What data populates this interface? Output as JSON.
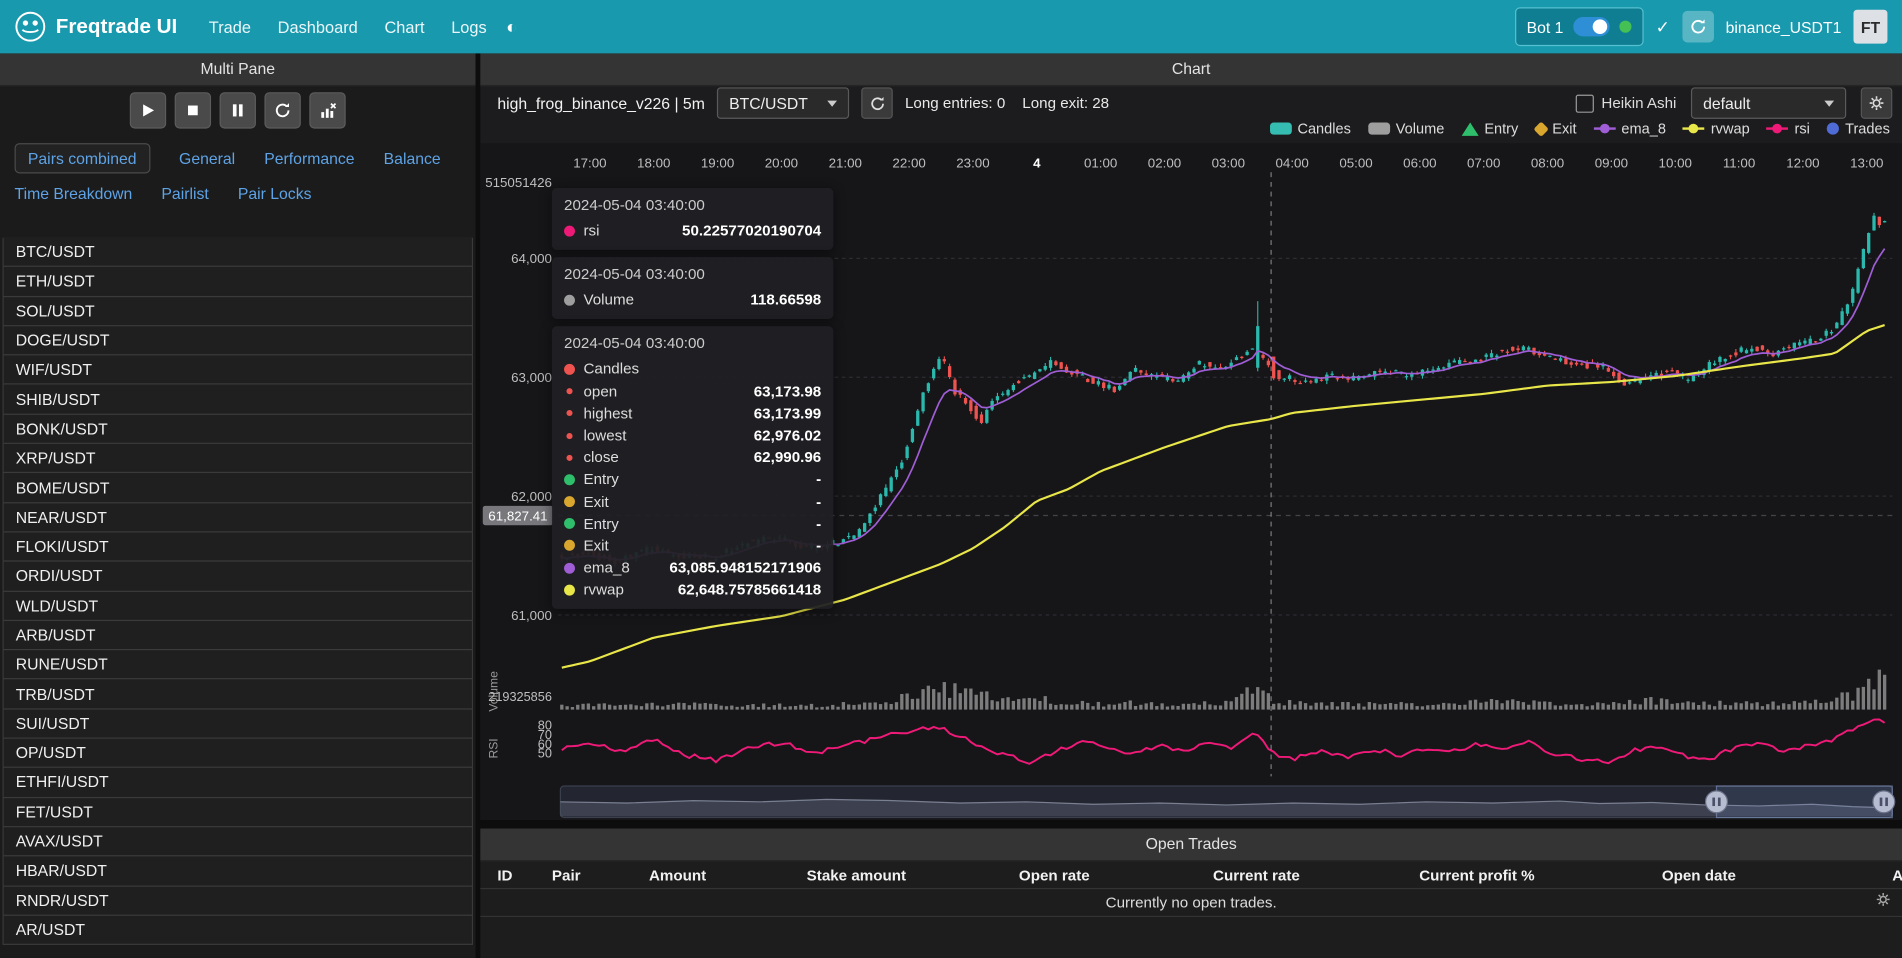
{
  "navbar": {
    "brand": "Freqtrade UI",
    "links": [
      "Trade",
      "Dashboard",
      "Chart",
      "Logs"
    ],
    "bot": {
      "name": "Bot 1",
      "online": true
    },
    "exchange_label": "binance_USDT1",
    "avatar": "FT"
  },
  "sidebar": {
    "title": "Multi Pane",
    "tabs": [
      "Pairs combined",
      "General",
      "Performance",
      "Balance",
      "Time Breakdown",
      "Pairlist",
      "Pair Locks"
    ],
    "active_tab": "Pairs combined",
    "pairs": [
      "BTC/USDT",
      "ETH/USDT",
      "SOL/USDT",
      "DOGE/USDT",
      "WIF/USDT",
      "SHIB/USDT",
      "BONK/USDT",
      "XRP/USDT",
      "BOME/USDT",
      "NEAR/USDT",
      "FLOKI/USDT",
      "ORDI/USDT",
      "WLD/USDT",
      "ARB/USDT",
      "RUNE/USDT",
      "TRB/USDT",
      "SUI/USDT",
      "OP/USDT",
      "ETHFI/USDT",
      "FET/USDT",
      "AVAX/USDT",
      "HBAR/USDT",
      "RNDR/USDT",
      "AR/USDT"
    ]
  },
  "chart_panel": {
    "title": "Chart",
    "strategy_label": "high_frog_binance_v226 | 5m",
    "pair_select": "BTC/USDT",
    "entries_label": "Long entries: 0",
    "exits_label": "Long exit: 28",
    "heikin_ashi_label": "Heikin Ashi",
    "plot_config_select": "default",
    "legend": [
      {
        "label": "Candles",
        "color": "#35bdb2",
        "shape": "rect"
      },
      {
        "label": "Volume",
        "color": "#9e9e9e",
        "shape": "rect"
      },
      {
        "label": "Entry",
        "color": "#2fbf6c",
        "shape": "triangle"
      },
      {
        "label": "Exit",
        "color": "#d9a62e",
        "shape": "diamond"
      },
      {
        "label": "ema_8",
        "color": "#a05ed6",
        "shape": "line"
      },
      {
        "label": "rvwap",
        "color": "#e9e649",
        "shape": "line"
      },
      {
        "label": "rsi",
        "color": "#ef1a78",
        "shape": "line"
      },
      {
        "label": "Trades",
        "color": "#4f6bd5",
        "shape": "circle"
      }
    ]
  },
  "tooltip": {
    "sections": [
      {
        "timestamp": "2024-05-04 03:40:00",
        "rows": [
          {
            "label": "rsi",
            "value": "50.22577020190704",
            "color": "#ef1a78"
          }
        ]
      },
      {
        "timestamp": "2024-05-04 03:40:00",
        "rows": [
          {
            "label": "Volume",
            "value": "118.66598",
            "color": "#9e9e9e"
          }
        ]
      },
      {
        "timestamp": "2024-05-04 03:40:00",
        "rows": [
          {
            "label": "Candles",
            "value": "",
            "color": "#ef5350"
          },
          {
            "label": "open",
            "value": "63,173.98",
            "color": "#ef5350",
            "sub": true
          },
          {
            "label": "highest",
            "value": "63,173.99",
            "color": "#ef5350",
            "sub": true
          },
          {
            "label": "lowest",
            "value": "62,976.02",
            "color": "#ef5350",
            "sub": true
          },
          {
            "label": "close",
            "value": "62,990.96",
            "color": "#ef5350",
            "sub": true
          },
          {
            "label": "Entry",
            "value": "-",
            "color": "#2fbf6c"
          },
          {
            "label": "Exit",
            "value": "-",
            "color": "#d9a62e"
          },
          {
            "label": "Entry",
            "value": "-",
            "color": "#2fbf6c"
          },
          {
            "label": "Exit",
            "value": "-",
            "color": "#d9a62e"
          },
          {
            "label": "ema_8",
            "value": "63,085.948152171906",
            "color": "#a05ed6"
          },
          {
            "label": "rvwap",
            "value": "62,648.75785661418",
            "color": "#e9e649"
          }
        ]
      }
    ]
  },
  "chart_data": {
    "type": "candlestick",
    "pair": "BTC/USDT",
    "timeframe": "5m",
    "x_axis_labels": [
      "17:00",
      "18:00",
      "19:00",
      "20:00",
      "21:00",
      "22:00",
      "23:00",
      "4",
      "01:00",
      "02:00",
      "03:00",
      "04:00",
      "05:00",
      "06:00",
      "07:00",
      "08:00",
      "09:00",
      "10:00",
      "11:00",
      "12:00",
      "13:00"
    ],
    "y_axis_labels": [
      "515051426",
      "64,000",
      "63,000",
      "62,000",
      "61,000"
    ],
    "volume_axis_label": "219325856",
    "rsi_axis_labels": [
      "80",
      "70",
      "60",
      "50"
    ],
    "axis_pointer_price": "61,827.41",
    "crosshair_time": "2024-05-04 03:40:00",
    "colors": {
      "up": "#2ab9ac",
      "down": "#ef5350",
      "ema_8": "#a05ed6",
      "rvwap": "#e9e649",
      "rsi": "#ef1a78",
      "volume": "#8b8b8b"
    },
    "price_anchors": [
      [
        0,
        61480
      ],
      [
        0.5,
        61520
      ],
      [
        1,
        61450
      ],
      [
        1.5,
        61560
      ],
      [
        2,
        61500
      ],
      [
        2.5,
        61480
      ],
      [
        3,
        61600
      ],
      [
        3.5,
        61650
      ],
      [
        4,
        61560
      ],
      [
        4.5,
        61620
      ],
      [
        4.8,
        61700
      ],
      [
        5,
        61880
      ],
      [
        5.2,
        62040
      ],
      [
        5.5,
        62340
      ],
      [
        5.8,
        62880
      ],
      [
        6,
        63090
      ],
      [
        6.1,
        63170
      ],
      [
        6.3,
        62880
      ],
      [
        6.5,
        62780
      ],
      [
        6.7,
        62610
      ],
      [
        6.9,
        62800
      ],
      [
        7.2,
        62950
      ],
      [
        7.5,
        63020
      ],
      [
        7.8,
        63120
      ],
      [
        8.1,
        63050
      ],
      [
        8.5,
        62950
      ],
      [
        8.8,
        62900
      ],
      [
        9.1,
        63060
      ],
      [
        9.5,
        63000
      ],
      [
        9.8,
        62960
      ],
      [
        10.1,
        63120
      ],
      [
        10.5,
        63080
      ],
      [
        10.7,
        63150
      ],
      [
        10.92,
        63240
      ],
      [
        11.17,
        63140
      ],
      [
        11.35,
        62990
      ],
      [
        11.5,
        63000
      ],
      [
        11.8,
        62950
      ],
      [
        12.2,
        63020
      ],
      [
        12.5,
        62980
      ],
      [
        12.9,
        63050
      ],
      [
        13.5,
        63020
      ],
      [
        13.9,
        63100
      ],
      [
        14.5,
        63150
      ],
      [
        14.9,
        63230
      ],
      [
        15.2,
        63260
      ],
      [
        15.5,
        63180
      ],
      [
        15.9,
        63120
      ],
      [
        16.5,
        63080
      ],
      [
        16.8,
        62940
      ],
      [
        17.1,
        62990
      ],
      [
        17.5,
        63050
      ],
      [
        17.8,
        62980
      ],
      [
        18.1,
        63100
      ],
      [
        18.5,
        63200
      ],
      [
        18.8,
        63260
      ],
      [
        19.1,
        63200
      ],
      [
        19.5,
        63280
      ],
      [
        19.8,
        63320
      ],
      [
        20.1,
        63420
      ],
      [
        20.35,
        63700
      ],
      [
        20.55,
        64100
      ],
      [
        20.7,
        64380
      ],
      [
        20.8,
        64260
      ],
      [
        20.9,
        64320
      ]
    ],
    "rvwap_anchors": [
      [
        0,
        60550
      ],
      [
        0.5,
        60610
      ],
      [
        1.5,
        60810
      ],
      [
        2.5,
        60910
      ],
      [
        3.5,
        60990
      ],
      [
        4.5,
        61130
      ],
      [
        5,
        61230
      ],
      [
        5.5,
        61330
      ],
      [
        6,
        61430
      ],
      [
        6.5,
        61560
      ],
      [
        7,
        61740
      ],
      [
        7.5,
        61960
      ],
      [
        8,
        62060
      ],
      [
        8.5,
        62210
      ],
      [
        9.5,
        62410
      ],
      [
        10.5,
        62590
      ],
      [
        11.17,
        62648
      ],
      [
        11.5,
        62700
      ],
      [
        12.5,
        62760
      ],
      [
        13.5,
        62810
      ],
      [
        14.5,
        62860
      ],
      [
        15.5,
        62930
      ],
      [
        16.5,
        62960
      ],
      [
        17.5,
        63010
      ],
      [
        18.5,
        63090
      ],
      [
        19.5,
        63160
      ],
      [
        20,
        63200
      ],
      [
        20.5,
        63390
      ],
      [
        20.9,
        63460
      ]
    ],
    "rsi_anchors": [
      [
        0,
        55
      ],
      [
        0.5,
        60
      ],
      [
        1,
        52
      ],
      [
        1.5,
        64
      ],
      [
        2,
        48
      ],
      [
        2.5,
        42
      ],
      [
        3,
        55
      ],
      [
        3.5,
        62
      ],
      [
        4,
        50
      ],
      [
        4.5,
        58
      ],
      [
        5,
        66
      ],
      [
        5.5,
        74
      ],
      [
        5.9,
        79
      ],
      [
        6.3,
        68
      ],
      [
        6.7,
        55
      ],
      [
        7,
        48
      ],
      [
        7.4,
        40
      ],
      [
        7.8,
        52
      ],
      [
        8.2,
        63
      ],
      [
        8.6,
        57
      ],
      [
        9,
        50
      ],
      [
        9.4,
        58
      ],
      [
        9.8,
        52
      ],
      [
        10.2,
        60
      ],
      [
        10.6,
        56
      ],
      [
        10.92,
        72
      ],
      [
        11.17,
        50.2
      ],
      [
        11.5,
        44
      ],
      [
        12,
        52
      ],
      [
        12.4,
        46
      ],
      [
        12.8,
        54
      ],
      [
        13.2,
        48
      ],
      [
        13.6,
        56
      ],
      [
        14,
        52
      ],
      [
        14.4,
        60
      ],
      [
        14.8,
        55
      ],
      [
        15.2,
        62
      ],
      [
        15.6,
        50
      ],
      [
        16,
        44
      ],
      [
        16.4,
        40
      ],
      [
        16.8,
        52
      ],
      [
        17.2,
        58
      ],
      [
        17.6,
        48
      ],
      [
        18,
        42
      ],
      [
        18.4,
        55
      ],
      [
        18.8,
        60
      ],
      [
        19.2,
        52
      ],
      [
        19.6,
        58
      ],
      [
        20,
        66
      ],
      [
        20.3,
        76
      ],
      [
        20.6,
        86
      ],
      [
        20.9,
        80
      ]
    ],
    "volume_envelope": [
      [
        0,
        5
      ],
      [
        2,
        6
      ],
      [
        4,
        5
      ],
      [
        4.8,
        8
      ],
      [
        5.2,
        12
      ],
      [
        5.5,
        16
      ],
      [
        5.8,
        24
      ],
      [
        6,
        30
      ],
      [
        6.2,
        24
      ],
      [
        6.5,
        18
      ],
      [
        6.8,
        14
      ],
      [
        7.2,
        10
      ],
      [
        7.6,
        12
      ],
      [
        8,
        8
      ],
      [
        8.5,
        7
      ],
      [
        9,
        8
      ],
      [
        9.5,
        6
      ],
      [
        10,
        7
      ],
      [
        10.5,
        8
      ],
      [
        10.92,
        26
      ],
      [
        11.1,
        14
      ],
      [
        11.5,
        8
      ],
      [
        12,
        6
      ],
      [
        12.5,
        7
      ],
      [
        13,
        6
      ],
      [
        13.5,
        7
      ],
      [
        14,
        8
      ],
      [
        14.5,
        10
      ],
      [
        15,
        9
      ],
      [
        15.5,
        7
      ],
      [
        16,
        6
      ],
      [
        16.5,
        7
      ],
      [
        17,
        10
      ],
      [
        17.5,
        12
      ],
      [
        18,
        8
      ],
      [
        18.5,
        7
      ],
      [
        19,
        8
      ],
      [
        19.5,
        10
      ],
      [
        20,
        12
      ],
      [
        20.3,
        20
      ],
      [
        20.5,
        28
      ],
      [
        20.7,
        34
      ],
      [
        20.9,
        26
      ]
    ],
    "spike_candle": {
      "t": 10.92,
      "open": 63080,
      "high": 63640,
      "low": 63050,
      "close": 63430
    },
    "crosshair_candle": {
      "t": 11.17,
      "open": 63173.98,
      "high": 63173.99,
      "low": 62976.02,
      "close": 62990.96
    },
    "navigator": {
      "window_start_frac": 0.868,
      "profile": [
        [
          0,
          0.55
        ],
        [
          0.05,
          0.5
        ],
        [
          0.1,
          0.6
        ],
        [
          0.15,
          0.55
        ],
        [
          0.2,
          0.65
        ],
        [
          0.25,
          0.6
        ],
        [
          0.3,
          0.5
        ],
        [
          0.35,
          0.55
        ],
        [
          0.4,
          0.45
        ],
        [
          0.45,
          0.5
        ],
        [
          0.5,
          0.42
        ],
        [
          0.55,
          0.5
        ],
        [
          0.6,
          0.45
        ],
        [
          0.65,
          0.55
        ],
        [
          0.7,
          0.5
        ],
        [
          0.75,
          0.58
        ],
        [
          0.78,
          0.48
        ],
        [
          0.82,
          0.52
        ],
        [
          0.86,
          0.42
        ],
        [
          0.9,
          0.38
        ],
        [
          0.94,
          0.45
        ],
        [
          0.97,
          0.35
        ],
        [
          1,
          0.3
        ]
      ]
    }
  },
  "open_trades": {
    "title": "Open Trades",
    "columns": [
      "ID",
      "Pair",
      "Amount",
      "Stake amount",
      "Open rate",
      "Current rate",
      "Current profit %",
      "Open date",
      "Actions"
    ],
    "empty_message": "Currently no open trades."
  }
}
